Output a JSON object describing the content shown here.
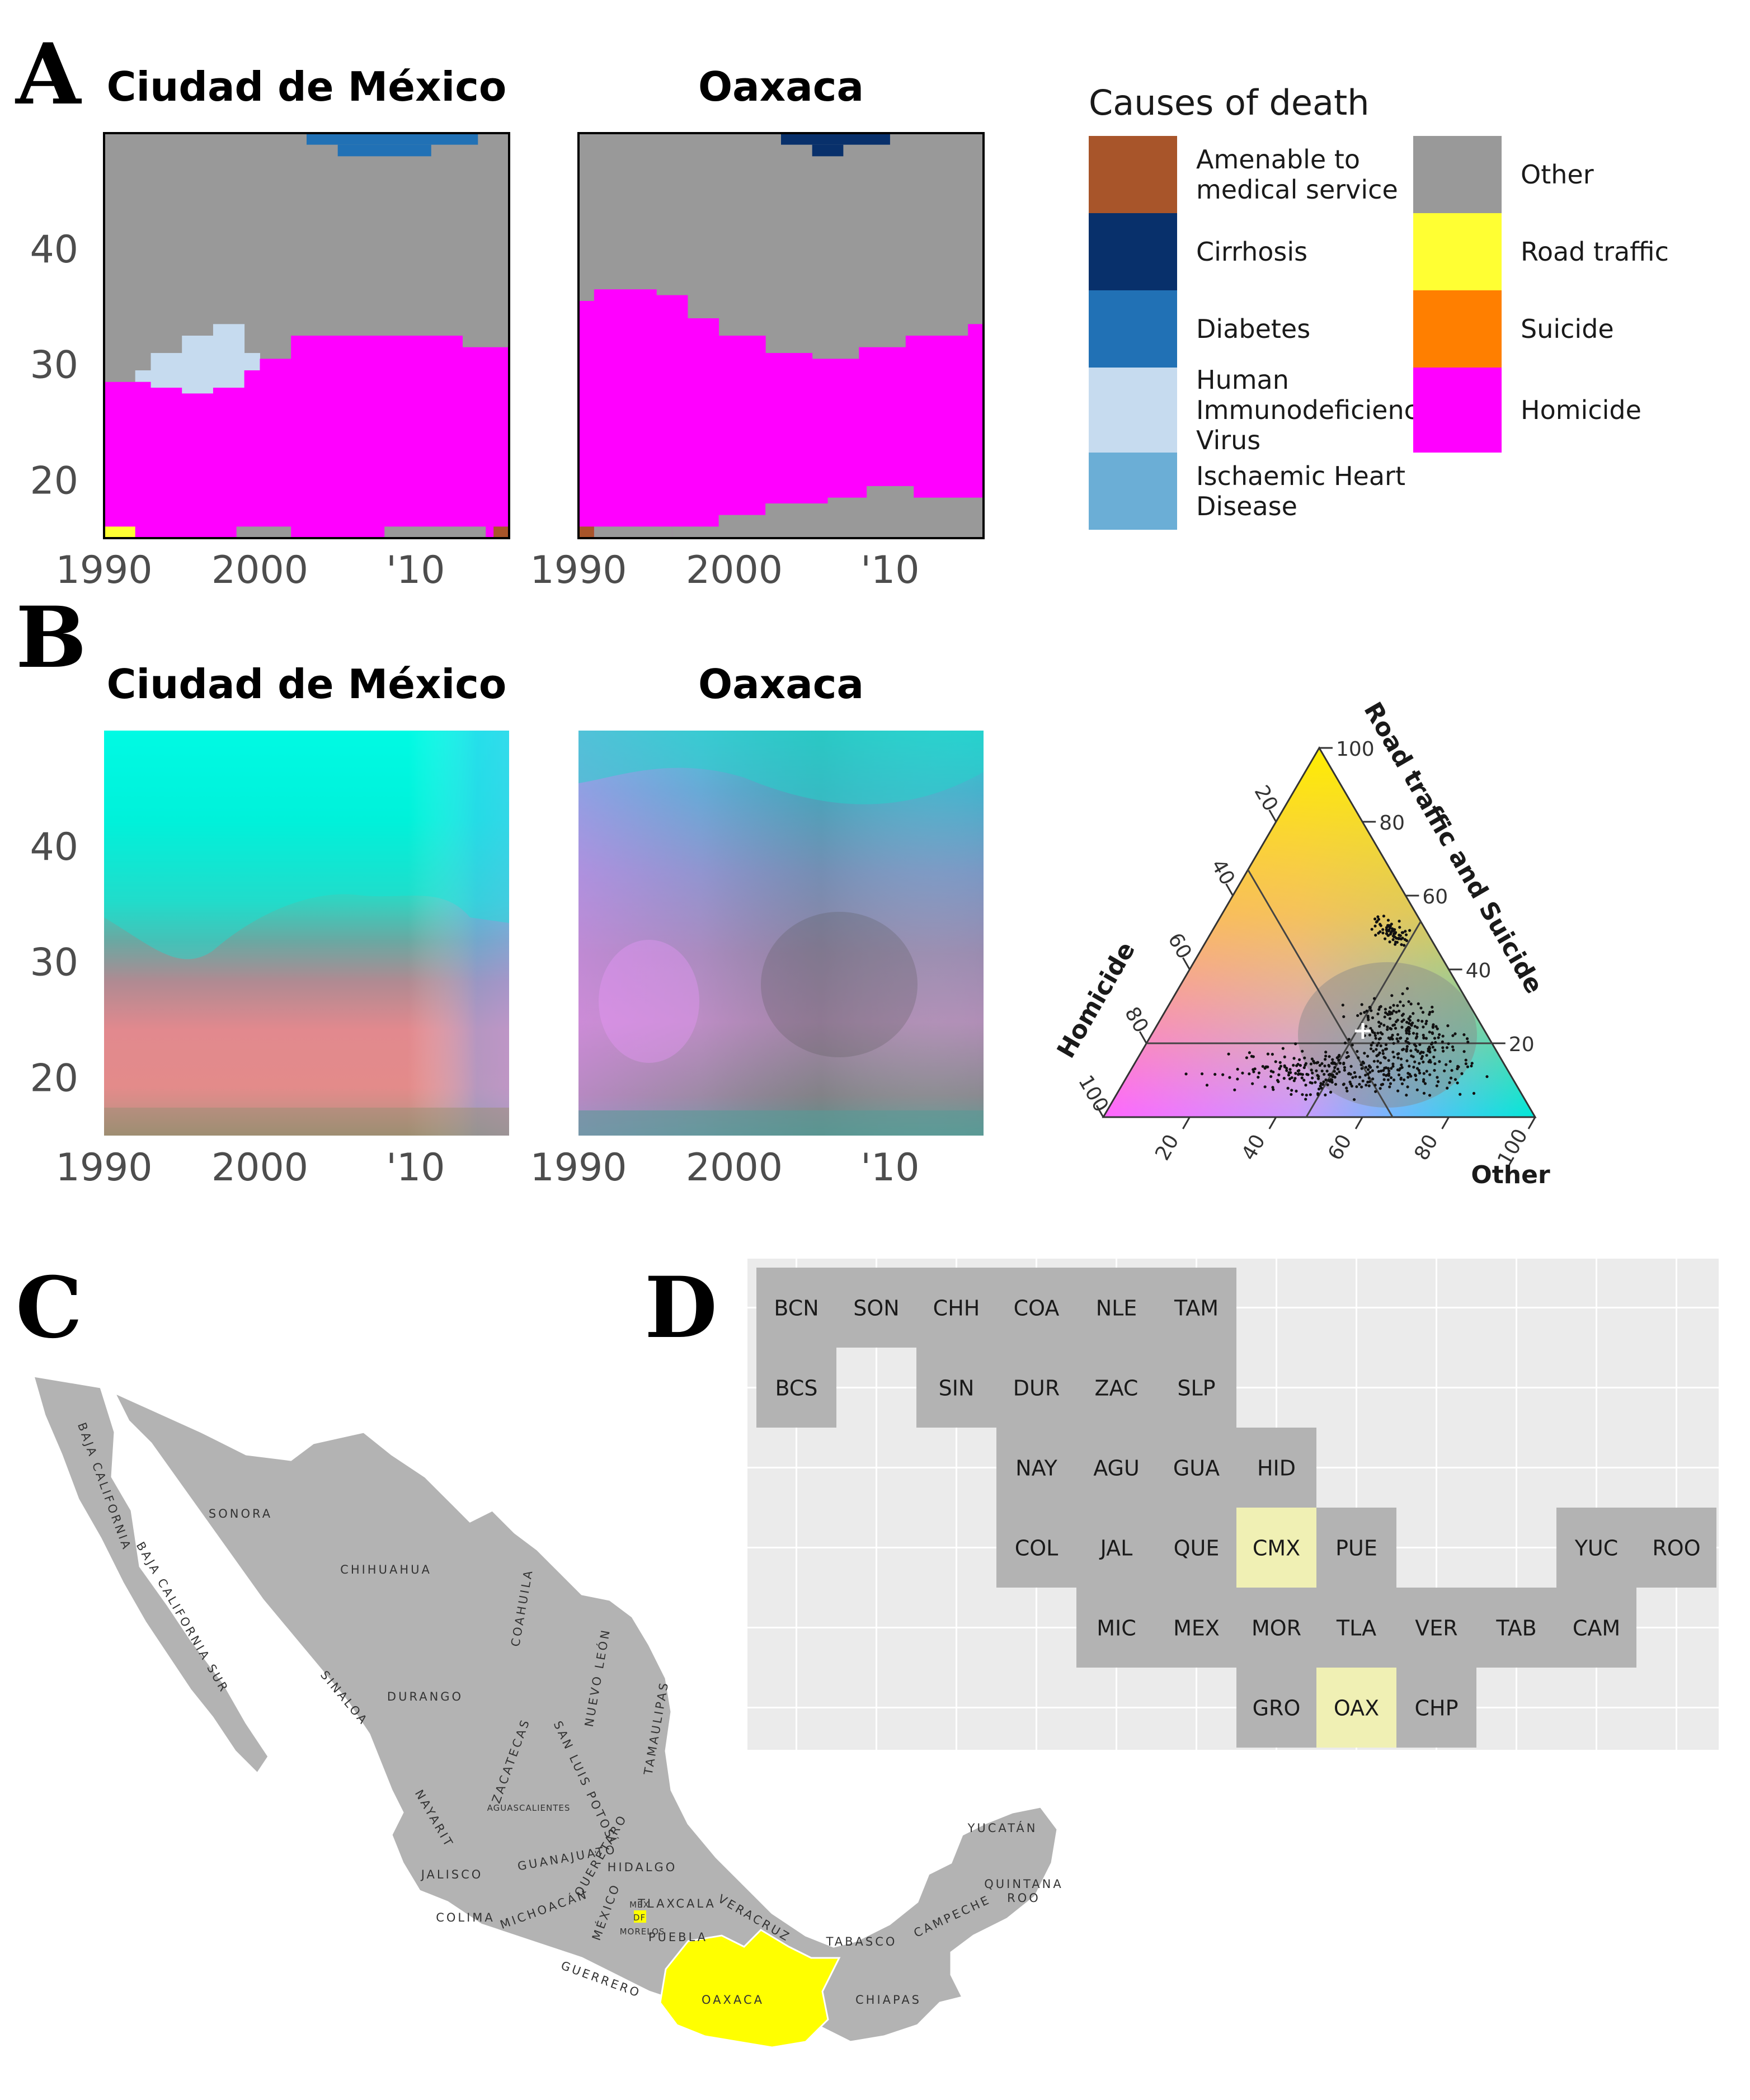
{
  "panels": {
    "A": "A",
    "B": "B",
    "C": "C",
    "D": "D"
  },
  "colors": {
    "Amenable to medical service": "#a8552a",
    "Cirrhosis": "#08306b",
    "Diabetes": "#2171b5",
    "Human Immunodeficiency Virus": "#c6dbef",
    "Ischaemic Heart Disease": "#6baed6",
    "Other": "#999999",
    "Road traffic": "#ffff33",
    "Suicide": "#ff7f00",
    "Homicide": "#ff00ff",
    "highlight": "#ffff00",
    "tile_highlight": "#f0f0b4",
    "tile_default": "#b3b3b3"
  },
  "legend": {
    "title": "Causes of death",
    "items": [
      {
        "key": "Amenable to medical service",
        "lines": [
          "Amenable to",
          "medical service"
        ]
      },
      {
        "key": "Cirrhosis",
        "lines": [
          "Cirrhosis"
        ]
      },
      {
        "key": "Diabetes",
        "lines": [
          "Diabetes"
        ]
      },
      {
        "key": "Human Immunodeficiency Virus",
        "lines": [
          "Human",
          "Immunodeficiency",
          "Virus"
        ]
      },
      {
        "key": "Ischaemic Heart Disease",
        "lines": [
          "Ischaemic Heart",
          "Disease"
        ]
      },
      {
        "key": "Other",
        "lines": [
          "Other"
        ]
      },
      {
        "key": "Road traffic",
        "lines": [
          "Road traffic"
        ]
      },
      {
        "key": "Suicide",
        "lines": [
          "Suicide"
        ]
      },
      {
        "key": "Homicide",
        "lines": [
          "Homicide"
        ]
      }
    ]
  },
  "chart_data": [
    {
      "panel": "A",
      "type": "heatmap",
      "title": "Ciudad de México",
      "x_ticks": [
        "1990",
        "2000",
        "'10"
      ],
      "x_tick_values": [
        1990,
        2000,
        2010
      ],
      "y_ticks": [
        "20",
        "30",
        "40"
      ],
      "y_tick_values": [
        20,
        30,
        40
      ],
      "xlim": [
        1990,
        2016
      ],
      "ylim": [
        15,
        50
      ],
      "boundaries": [
        {
          "year": 1990,
          "homicide_upper": 28.5,
          "hiv_upper": 28.5
        },
        {
          "year": 1992,
          "homicide_upper": 28.5,
          "hiv_upper": 29.5
        },
        {
          "year": 1993,
          "homicide_upper": 28,
          "hiv_upper": 31
        },
        {
          "year": 1995,
          "homicide_upper": 27.5,
          "hiv_upper": 32.5
        },
        {
          "year": 1997,
          "homicide_upper": 28,
          "hiv_upper": 33.5
        },
        {
          "year": 1999,
          "homicide_upper": 29.5,
          "hiv_upper": 31
        },
        {
          "year": 2000,
          "homicide_upper": 30.5,
          "hiv_upper": 30.5
        },
        {
          "year": 2002,
          "homicide_upper": 32.5,
          "hiv_upper": 32.5
        },
        {
          "year": 2008,
          "homicide_upper": 32.5,
          "hiv_upper": 32.5
        },
        {
          "year": 2013,
          "homicide_upper": 31.5,
          "hiv_upper": 31.5
        },
        {
          "year": 2016,
          "homicide_upper": 31.5,
          "hiv_upper": 31.5
        }
      ]
    },
    {
      "panel": "A",
      "type": "heatmap",
      "title": "Oaxaca",
      "x_ticks": [
        "1990",
        "2000",
        "'10"
      ],
      "x_tick_values": [
        1990,
        2000,
        2010
      ],
      "xlim": [
        1990,
        2016
      ],
      "ylim": [
        15,
        50
      ],
      "boundaries": [
        {
          "year": 1990,
          "homicide_upper": 35.5
        },
        {
          "year": 1991,
          "homicide_upper": 36.5
        },
        {
          "year": 1995,
          "homicide_upper": 36
        },
        {
          "year": 1997,
          "homicide_upper": 34
        },
        {
          "year": 1999,
          "homicide_upper": 32.5
        },
        {
          "year": 2002,
          "homicide_upper": 31
        },
        {
          "year": 2005,
          "homicide_upper": 30.5
        },
        {
          "year": 2008,
          "homicide_upper": 31.5
        },
        {
          "year": 2011,
          "homicide_upper": 32.5
        },
        {
          "year": 2015,
          "homicide_upper": 33.5
        }
      ]
    },
    {
      "panel": "B",
      "type": "heatmap",
      "title": "Ciudad de México",
      "x_ticks": [
        "1990",
        "2000",
        "'10"
      ],
      "y_ticks": [
        "20",
        "30",
        "40"
      ],
      "xlim": [
        1990,
        2016
      ],
      "ylim": [
        15,
        50
      ]
    },
    {
      "panel": "B",
      "type": "heatmap",
      "title": "Oaxaca",
      "x_ticks": [
        "1990",
        "2000",
        "'10"
      ],
      "xlim": [
        1990,
        2016
      ],
      "ylim": [
        15,
        50
      ]
    },
    {
      "panel": "B",
      "type": "scatter",
      "subtype": "ternary",
      "axes": {
        "top": "Road traffic and Suicide",
        "left": "Homicide",
        "right": "Other"
      },
      "ticks": [
        "20",
        "40",
        "60",
        "80",
        "100"
      ],
      "tick_values": [
        20,
        40,
        60,
        80,
        100
      ],
      "center": {
        "homicide": 33,
        "road_suicide": 20,
        "other": 47
      },
      "point_count": 600
    }
  ],
  "map": {
    "labels": [
      "BAJA CALIFORNIA",
      "SONORA",
      "CHIHUAHUA",
      "COAHUILA",
      "BAJA CALIFORNIA SUR",
      "SINALOA",
      "DURANGO",
      "NUEVO LEÓN",
      "TAMAULIPAS",
      "ZACATECAS",
      "SAN LUIS POTOSÍ",
      "AGUASCALIENTES",
      "NAYARIT",
      "GUANAJUATO",
      "QUERÉTARO",
      "JALISCO",
      "HIDALGO",
      "MICHOACÁN",
      "MÉXICO",
      "MEX",
      "DF",
      "TLAXCALA",
      "VERACRUZ",
      "COLIMA",
      "MORELOS",
      "PUEBLA",
      "GUERRERO",
      "YUCATÁN",
      "QUINTANA",
      "ROO",
      "CAMPECHE",
      "TABASCO",
      "OAXACA",
      "CHIAPAS"
    ]
  },
  "tilegrid": {
    "tiles": [
      {
        "code": "BCN",
        "col": 0,
        "row": 0
      },
      {
        "code": "SON",
        "col": 1,
        "row": 0
      },
      {
        "code": "CHH",
        "col": 2,
        "row": 0
      },
      {
        "code": "COA",
        "col": 3,
        "row": 0
      },
      {
        "code": "NLE",
        "col": 4,
        "row": 0
      },
      {
        "code": "TAM",
        "col": 5,
        "row": 0
      },
      {
        "code": "BCS",
        "col": 0,
        "row": 1
      },
      {
        "code": "SIN",
        "col": 2,
        "row": 1
      },
      {
        "code": "DUR",
        "col": 3,
        "row": 1
      },
      {
        "code": "ZAC",
        "col": 4,
        "row": 1
      },
      {
        "code": "SLP",
        "col": 5,
        "row": 1
      },
      {
        "code": "NAY",
        "col": 3,
        "row": 2
      },
      {
        "code": "AGU",
        "col": 4,
        "row": 2
      },
      {
        "code": "GUA",
        "col": 5,
        "row": 2
      },
      {
        "code": "HID",
        "col": 6,
        "row": 2
      },
      {
        "code": "COL",
        "col": 3,
        "row": 3
      },
      {
        "code": "JAL",
        "col": 4,
        "row": 3
      },
      {
        "code": "QUE",
        "col": 5,
        "row": 3
      },
      {
        "code": "CMX",
        "col": 6,
        "row": 3,
        "highlight": true
      },
      {
        "code": "PUE",
        "col": 7,
        "row": 3
      },
      {
        "code": "YUC",
        "col": 10,
        "row": 3
      },
      {
        "code": "ROO",
        "col": 11,
        "row": 3
      },
      {
        "code": "MIC",
        "col": 4,
        "row": 4
      },
      {
        "code": "MEX",
        "col": 5,
        "row": 4
      },
      {
        "code": "MOR",
        "col": 6,
        "row": 4
      },
      {
        "code": "TLA",
        "col": 7,
        "row": 4
      },
      {
        "code": "VER",
        "col": 8,
        "row": 4
      },
      {
        "code": "TAB",
        "col": 9,
        "row": 4
      },
      {
        "code": "CAM",
        "col": 10,
        "row": 4
      },
      {
        "code": "GRO",
        "col": 6,
        "row": 5
      },
      {
        "code": "OAX",
        "col": 7,
        "row": 5,
        "highlight": true
      },
      {
        "code": "CHP",
        "col": 8,
        "row": 5
      }
    ]
  }
}
